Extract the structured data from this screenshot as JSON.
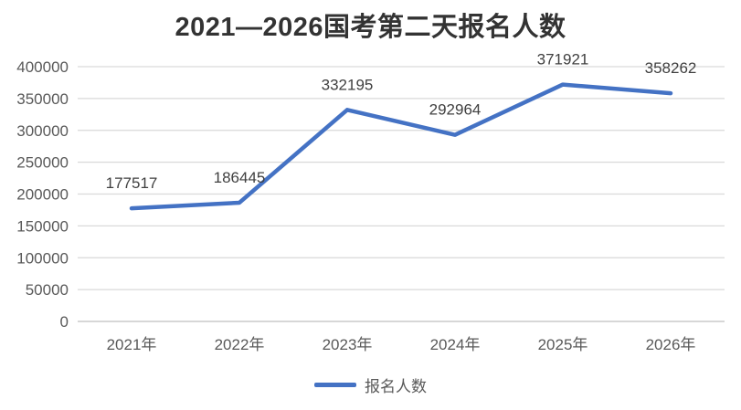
{
  "chart_data": {
    "type": "line",
    "title": "2021—2026国考第二天报名人数",
    "categories": [
      "2021年",
      "2022年",
      "2023年",
      "2024年",
      "2025年",
      "2026年"
    ],
    "series": [
      {
        "name": "报名人数",
        "values": [
          177517,
          186445,
          332195,
          292964,
          371921,
          358262
        ]
      }
    ],
    "xlabel": "",
    "ylabel": "",
    "ylim": [
      0,
      400000
    ],
    "ytick_step": 50000,
    "ytick_labels": [
      "0",
      "50000",
      "100000",
      "150000",
      "200000",
      "250000",
      "300000",
      "350000",
      "400000"
    ],
    "grid": true,
    "legend_position": "bottom",
    "colors": {
      "line": "#4472C4",
      "gridline": "#D9D9D9",
      "axis_line": "#BFBFBF",
      "axis_text": "#595959",
      "data_label": "#404040",
      "title": "#333333"
    }
  }
}
